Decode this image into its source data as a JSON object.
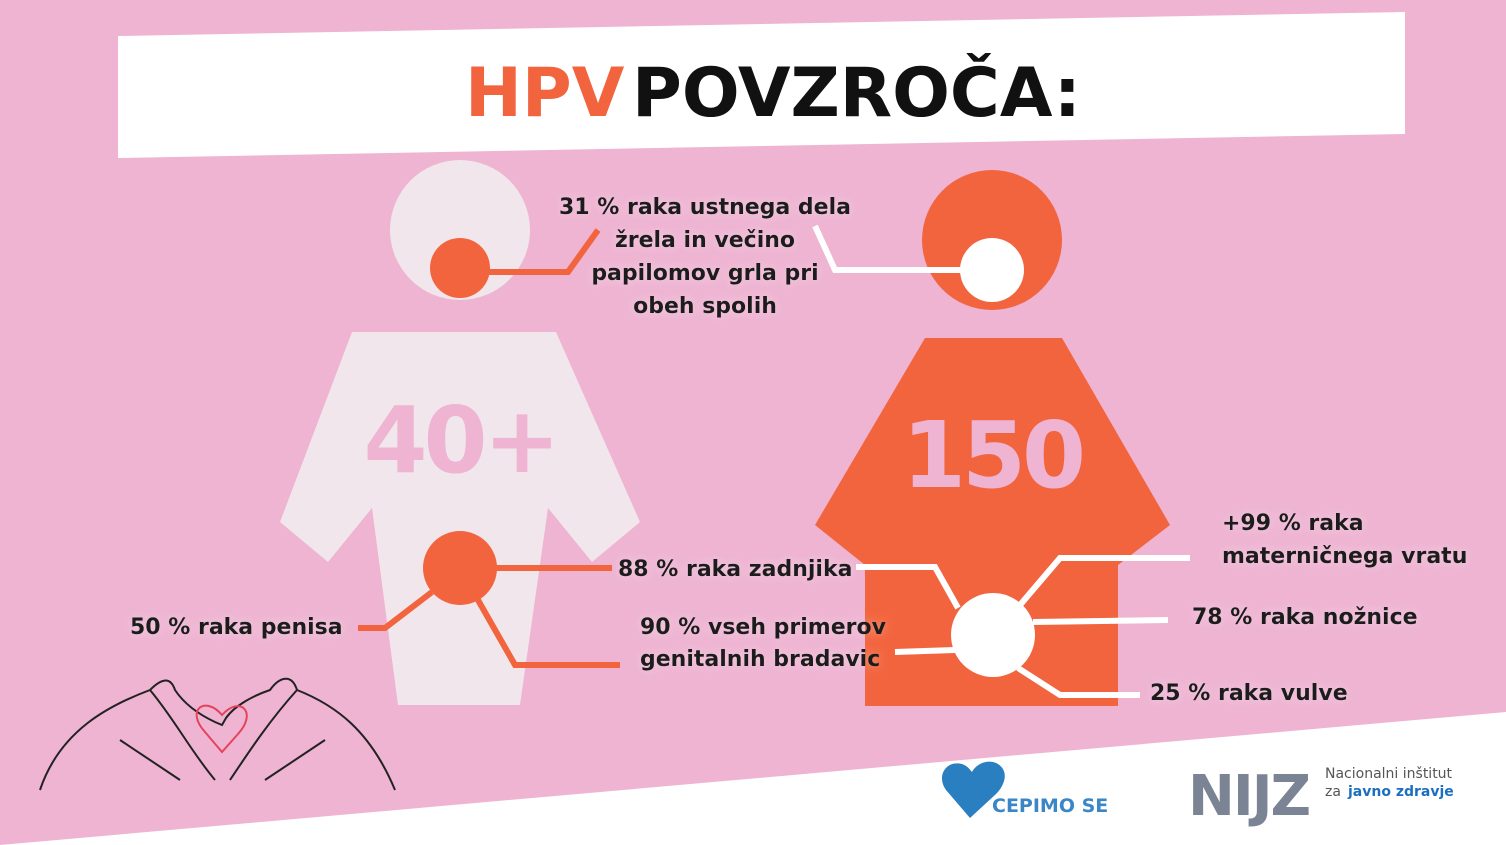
{
  "header": {
    "title_highlight": "HPV",
    "title_rest": "POVZROČA:"
  },
  "figures": {
    "male": {
      "number": "40+"
    },
    "female": {
      "number": "150"
    }
  },
  "callouts": {
    "throat": [
      "31 % raka ustnega dela",
      "žrela in večino",
      "papilomov grla pri",
      "obeh spolih"
    ],
    "anus": [
      "88 % raka zadnjika"
    ],
    "penis": [
      "50 % raka penisa"
    ],
    "warts": [
      "90 % vseh primerov",
      "genitalnih bradavic"
    ],
    "cervix": [
      "+99 % raka",
      "materničnega vratu"
    ],
    "vagina": [
      "78 % raka nožnice"
    ],
    "vulva": [
      "25 % raka vulve"
    ]
  },
  "logos": {
    "cepimo": "CEPIMO SE",
    "nijz": "NIJZ",
    "nijz_line1": "Nacionalni inštitut",
    "nijz_line2_prefix": "za",
    "nijz_line2_bold": "javno zdravje"
  }
}
